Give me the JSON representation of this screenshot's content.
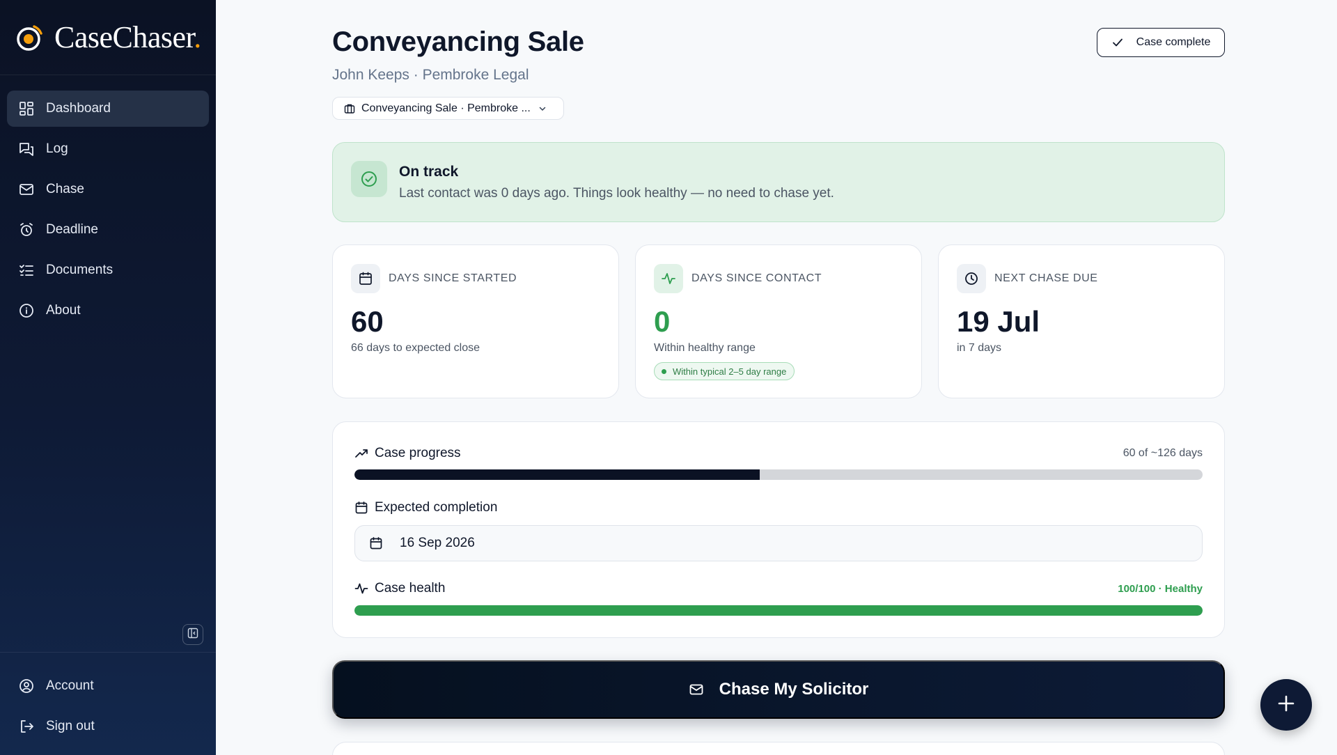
{
  "brand": {
    "name": "CaseChaser",
    "dot": ".",
    "accent_color": "#f59e0b"
  },
  "sidebar": {
    "items": [
      {
        "label": "Dashboard",
        "icon": "dashboard-icon",
        "active": true
      },
      {
        "label": "Log",
        "icon": "chat-log-icon"
      },
      {
        "label": "Chase",
        "icon": "mail-icon"
      },
      {
        "label": "Deadline",
        "icon": "alarm-clock-icon"
      },
      {
        "label": "Documents",
        "icon": "checklist-icon"
      },
      {
        "label": "About",
        "icon": "info-icon"
      }
    ],
    "bottom": [
      {
        "label": "Account",
        "icon": "user-circle-icon"
      },
      {
        "label": "Sign out",
        "icon": "sign-out-icon"
      }
    ]
  },
  "header": {
    "title": "Conveyancing Sale",
    "subtitle": "John Keeps · Pembroke Legal",
    "complete_button": "Case complete",
    "case_select": "Conveyancing Sale · Pembroke ..."
  },
  "status": {
    "title": "On track",
    "text": "Last contact was 0 days ago. Things look healthy — no need to chase yet.",
    "color": "#2e9e4f"
  },
  "stats": [
    {
      "label": "DAYS SINCE STARTED",
      "value": "60",
      "sub": "66 days to expected close",
      "icon": "calendar-icon"
    },
    {
      "label": "DAYS SINCE CONTACT",
      "value": "0",
      "sub": "Within healthy range",
      "badge": "Within typical 2–5 day range",
      "icon": "activity-icon"
    },
    {
      "label": "NEXT CHASE DUE",
      "value": "19 Jul",
      "sub": "in 7 days",
      "icon": "clock-icon"
    }
  ],
  "progress": {
    "title": "Case progress",
    "right": "60 of ~126 days",
    "fraction": 0.478,
    "bar_color": "#0b1224"
  },
  "completion": {
    "title": "Expected completion",
    "date": "16 Sep 2026"
  },
  "health": {
    "title": "Case health",
    "right": "100/100 · Healthy",
    "fraction": 1.0,
    "bar_color": "#2e9e4f"
  },
  "chase_button": "Chase My Solicitor"
}
